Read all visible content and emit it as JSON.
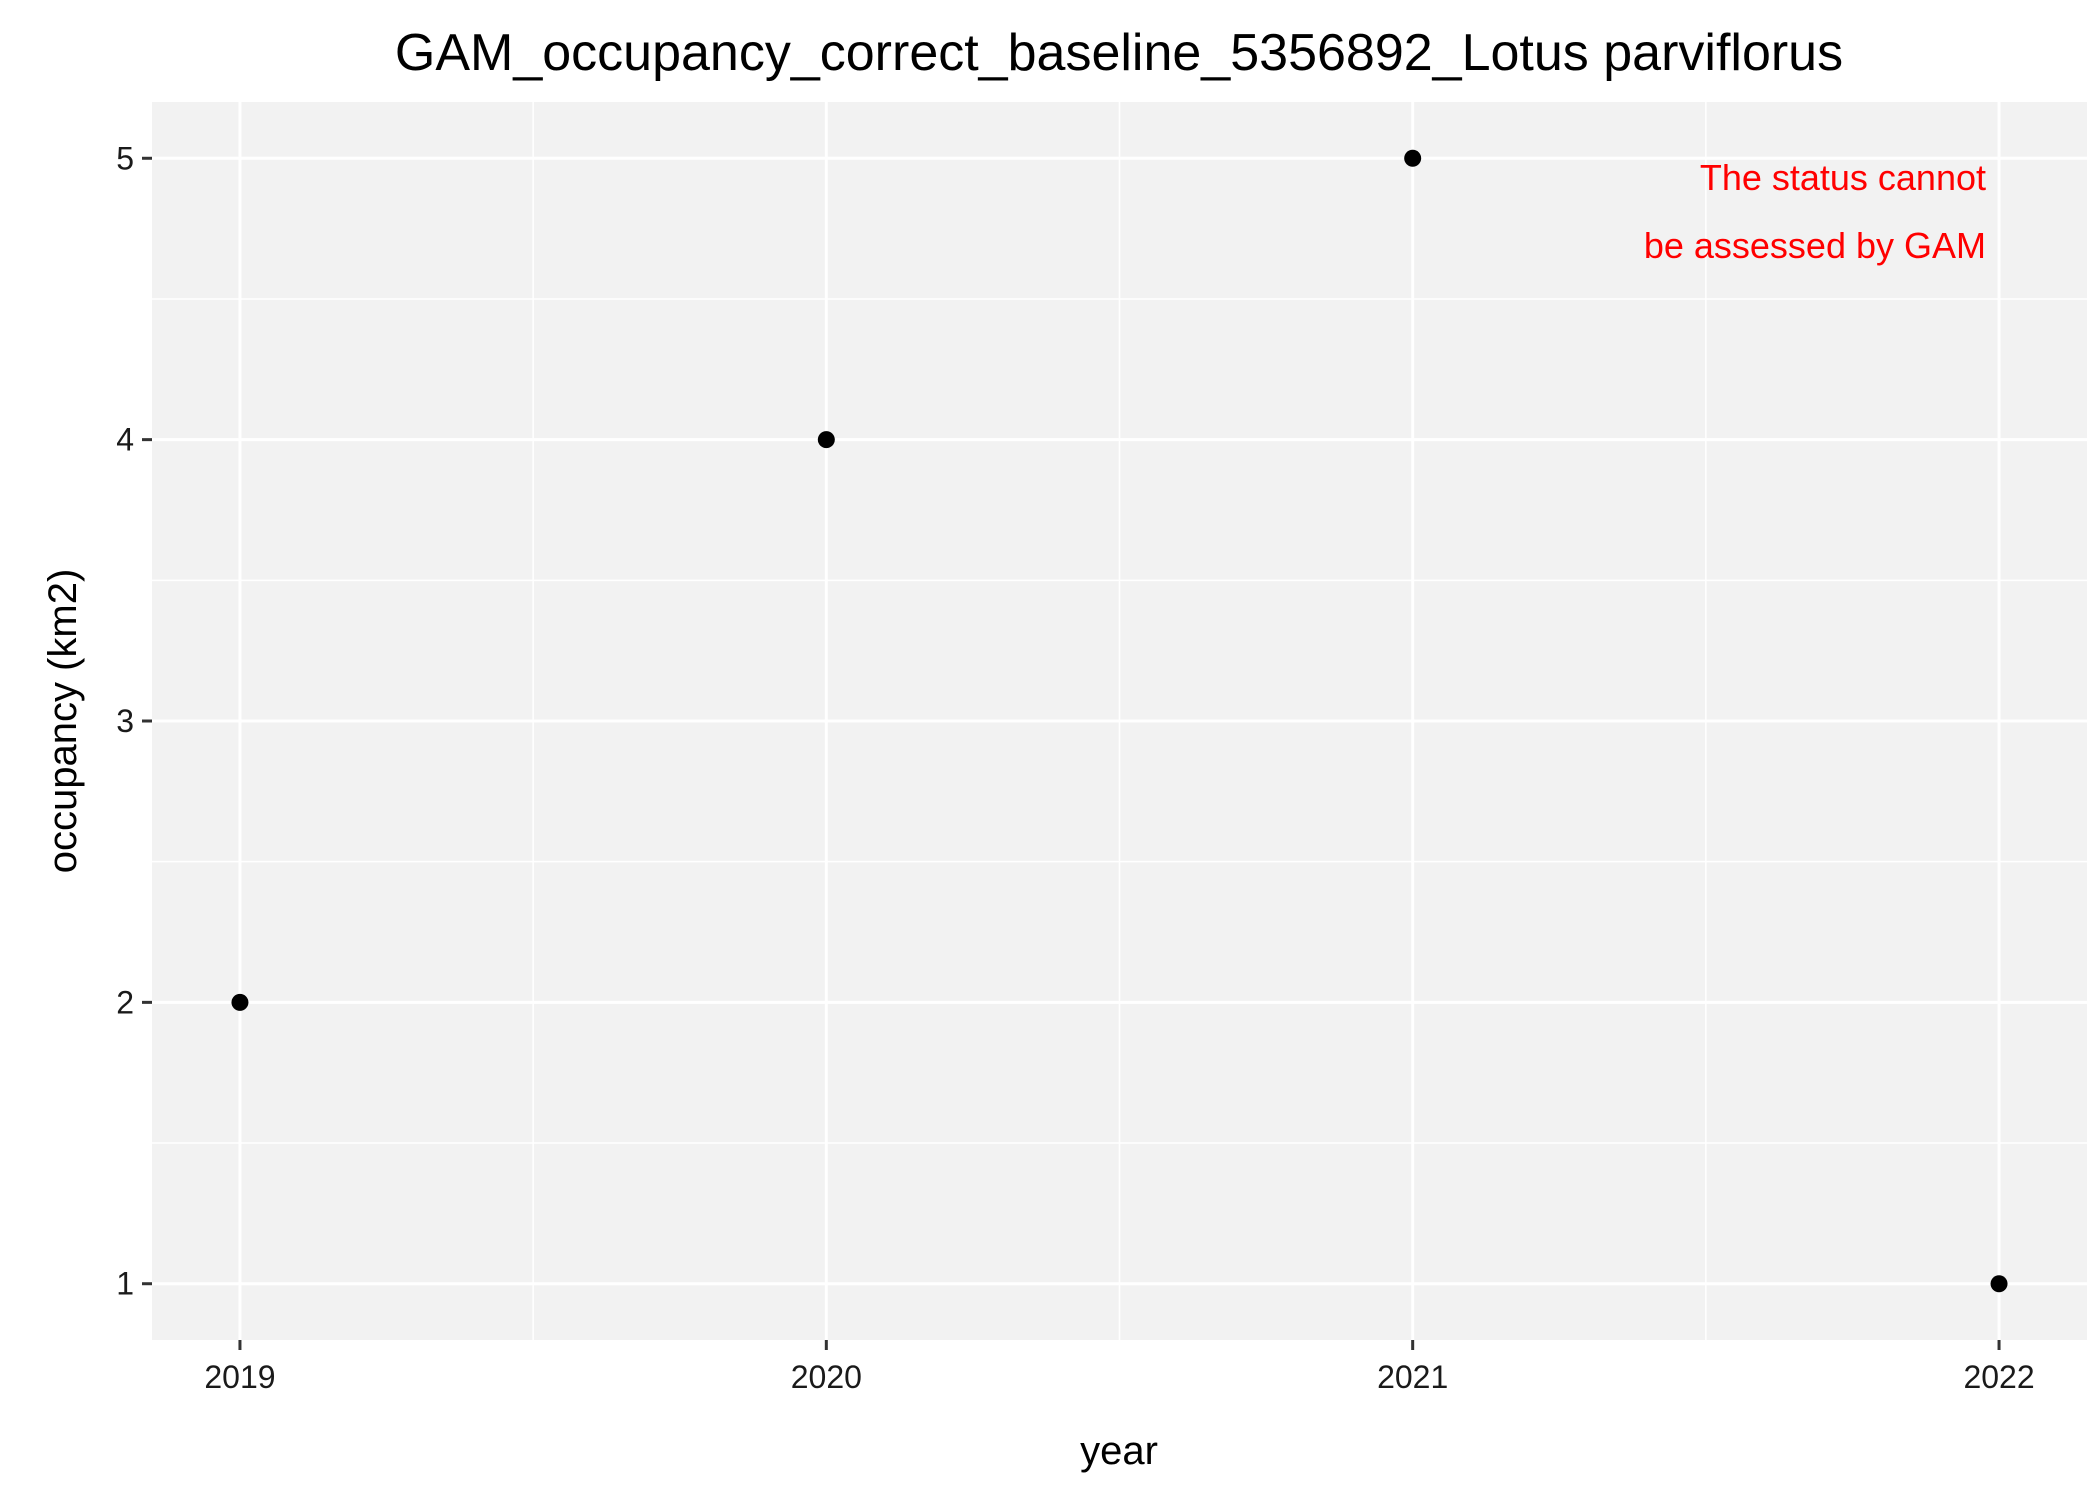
{
  "chart_data": {
    "type": "scatter",
    "title": "GAM_occupancy_correct_baseline_5356892_Lotus parviflorus",
    "xlabel": "year",
    "ylabel": "occupancy (km2)",
    "x": [
      2019,
      2020,
      2021,
      2022
    ],
    "y": [
      2,
      4,
      5,
      1
    ],
    "x_ticks": [
      "2019",
      "2020",
      "2021",
      "2022"
    ],
    "y_ticks": [
      "1",
      "2",
      "3",
      "4",
      "5"
    ],
    "xlim": [
      2018.85,
      2022.15
    ],
    "ylim": [
      0.8,
      5.2
    ],
    "grid": true,
    "legend": "none",
    "annotation": {
      "lines": [
        "The status cannot",
        "be assessed by GAM"
      ],
      "color": "#ff0000",
      "position": "top-right"
    },
    "colors": {
      "panel_background": "#f2f2f2",
      "gridline": "#ffffff",
      "point": "#000000"
    }
  }
}
